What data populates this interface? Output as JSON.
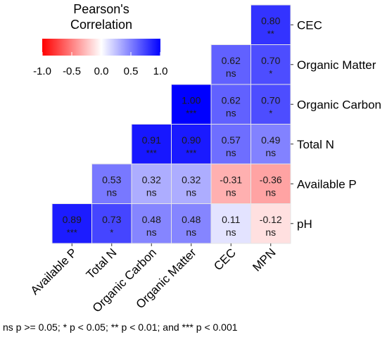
{
  "chart_data": {
    "type": "heatmap",
    "legend": {
      "title_line1": "Pearson's",
      "title_line2": "Correlation",
      "ticks": [
        "-1.0",
        "-0.5",
        "0.0",
        "0.5",
        "1.0"
      ],
      "range": [
        -1.0,
        1.0
      ],
      "colors": {
        "low": "#ff0000",
        "mid": "#ffffff",
        "high": "#0000ff"
      },
      "placement": "top-left"
    },
    "x_categories": [
      "Available P",
      "Total N",
      "Organic Carbon",
      "Organic Matter",
      "CEC",
      "MPN"
    ],
    "y_categories": [
      "CEC",
      "Organic Matter",
      "Organic Carbon",
      "Total N",
      "Available P",
      "pH"
    ],
    "cells": [
      {
        "row": "CEC",
        "col": "MPN",
        "value": 0.8,
        "label": "0.80",
        "sig": "**"
      },
      {
        "row": "Organic Matter",
        "col": "CEC",
        "value": 0.62,
        "label": "0.62",
        "sig": "ns"
      },
      {
        "row": "Organic Matter",
        "col": "MPN",
        "value": 0.7,
        "label": "0.70",
        "sig": "*"
      },
      {
        "row": "Organic Carbon",
        "col": "Organic Matter",
        "value": 1.0,
        "label": "1.00",
        "sig": "***"
      },
      {
        "row": "Organic Carbon",
        "col": "CEC",
        "value": 0.62,
        "label": "0.62",
        "sig": "ns"
      },
      {
        "row": "Organic Carbon",
        "col": "MPN",
        "value": 0.7,
        "label": "0.70",
        "sig": "*"
      },
      {
        "row": "Total N",
        "col": "Organic Carbon",
        "value": 0.91,
        "label": "0.91",
        "sig": "***"
      },
      {
        "row": "Total N",
        "col": "Organic Matter",
        "value": 0.9,
        "label": "0.90",
        "sig": "***"
      },
      {
        "row": "Total N",
        "col": "CEC",
        "value": 0.57,
        "label": "0.57",
        "sig": "ns"
      },
      {
        "row": "Total N",
        "col": "MPN",
        "value": 0.49,
        "label": "0.49",
        "sig": "ns"
      },
      {
        "row": "Available P",
        "col": "Total N",
        "value": 0.53,
        "label": "0.53",
        "sig": "ns"
      },
      {
        "row": "Available P",
        "col": "Organic Carbon",
        "value": 0.32,
        "label": "0.32",
        "sig": "ns"
      },
      {
        "row": "Available P",
        "col": "Organic Matter",
        "value": 0.32,
        "label": "0.32",
        "sig": "ns"
      },
      {
        "row": "Available P",
        "col": "CEC",
        "value": -0.31,
        "label": "-0.31",
        "sig": "ns"
      },
      {
        "row": "Available P",
        "col": "MPN",
        "value": -0.36,
        "label": "-0.36",
        "sig": "ns"
      },
      {
        "row": "pH",
        "col": "Available P",
        "value": 0.89,
        "label": "0.89",
        "sig": "***"
      },
      {
        "row": "pH",
        "col": "Total N",
        "value": 0.73,
        "label": "0.73",
        "sig": "*"
      },
      {
        "row": "pH",
        "col": "Organic Carbon",
        "value": 0.48,
        "label": "0.48",
        "sig": "ns"
      },
      {
        "row": "pH",
        "col": "Organic Matter",
        "value": 0.48,
        "label": "0.48",
        "sig": "ns"
      },
      {
        "row": "pH",
        "col": "CEC",
        "value": 0.11,
        "label": "0.11",
        "sig": "ns"
      },
      {
        "row": "pH",
        "col": "MPN",
        "value": -0.12,
        "label": "-0.12",
        "sig": "ns"
      }
    ],
    "footnote": "ns p >= 0.05; * p < 0.05; ** p < 0.01; and *** p < 0.001"
  }
}
